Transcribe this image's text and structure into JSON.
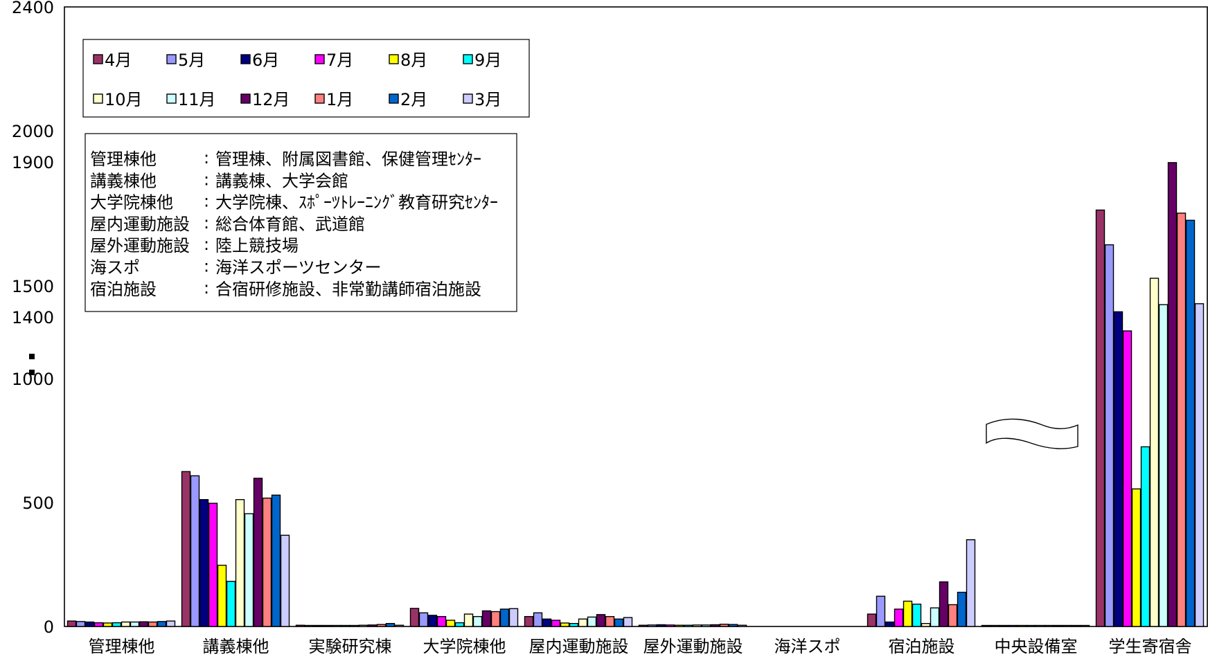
{
  "chart_data": {
    "type": "bar",
    "title": "",
    "xlabel": "",
    "ylabel": "",
    "categories": [
      "管理棟他",
      "講義棟他",
      "実験研究棟",
      "大学院棟他",
      "屋内運動施設",
      "屋外運動施設",
      "海洋スポ",
      "宿泊施設",
      "中央設備室",
      "学生寄宿舎"
    ],
    "y_ticks": [
      "0",
      "500",
      "1000",
      "1400",
      "1500",
      "1900",
      "2000",
      "2400"
    ],
    "y_axis_break": {
      "lower_range": [
        0,
        1000
      ],
      "upper_range": [
        1400,
        2400
      ]
    },
    "ylim": [
      0,
      2400
    ],
    "legend_position": "top-left",
    "grid": false,
    "series": [
      {
        "name": "4月",
        "color": "#993366",
        "values": [
          22,
          625,
          5,
          73,
          40,
          5,
          0,
          50,
          3,
          1745
        ]
      },
      {
        "name": "5月",
        "color": "#9999FF",
        "values": [
          20,
          608,
          4,
          55,
          55,
          6,
          0,
          122,
          3,
          1633
        ]
      },
      {
        "name": "6月",
        "color": "#000080",
        "values": [
          18,
          512,
          4,
          45,
          30,
          7,
          0,
          18,
          2,
          1417
        ]
      },
      {
        "name": "7月",
        "color": "#FF00FF",
        "values": [
          15,
          497,
          4,
          40,
          25,
          6,
          0,
          70,
          2,
          1310
        ]
      },
      {
        "name": "8月",
        "color": "#FFFF00",
        "values": [
          14,
          247,
          3,
          25,
          14,
          5,
          0,
          102,
          2,
          555
        ]
      },
      {
        "name": "9月",
        "color": "#00FFFF",
        "values": [
          15,
          182,
          3,
          15,
          12,
          5,
          0,
          90,
          2,
          725
        ]
      },
      {
        "name": "10月",
        "color": "#FFFFCC",
        "values": [
          18,
          512,
          4,
          50,
          30,
          6,
          0,
          12,
          2,
          1525
        ]
      },
      {
        "name": "11月",
        "color": "#CCFFFF",
        "values": [
          18,
          455,
          5,
          40,
          38,
          6,
          0,
          75,
          2,
          1440
        ]
      },
      {
        "name": "12月",
        "color": "#660066",
        "values": [
          19,
          598,
          6,
          63,
          48,
          7,
          0,
          180,
          2,
          1898
        ]
      },
      {
        "name": "1月",
        "color": "#FF8080",
        "values": [
          18,
          518,
          8,
          60,
          40,
          9,
          0,
          88,
          2,
          1735
        ]
      },
      {
        "name": "2月",
        "color": "#0066CC",
        "values": [
          20,
          530,
          12,
          70,
          30,
          8,
          0,
          138,
          2,
          1712
        ]
      },
      {
        "name": "3月",
        "color": "#CCCCFF",
        "values": [
          22,
          368,
          5,
          72,
          36,
          5,
          0,
          350,
          2,
          1443
        ]
      }
    ],
    "annotation_lines": [
      {
        "name": "管理棟他",
        "sep": ":",
        "desc": "管理棟、附属図書館、保健管理ｾﾝﾀｰ"
      },
      {
        "name": "講義棟他",
        "sep": ":",
        "desc": "講義棟、大学会館"
      },
      {
        "name": "大学院棟他",
        "sep": ":",
        "desc": "大学院棟、ｽﾎﾟｰﾂﾄﾚｰﾆﾝｸﾞ教育研究ｾﾝﾀｰ"
      },
      {
        "name": "屋内運動施設",
        "sep": ":",
        "desc": "総合体育館、武道館"
      },
      {
        "name": "屋外運動施設",
        "sep": ":",
        "desc": "陸上競技場"
      },
      {
        "name": "海スポ",
        "sep": ":",
        "desc": "海洋スポーツセンター"
      },
      {
        "name": "宿泊施設",
        "sep": ":",
        "desc": "合宿研修施設、非常勤講師宿泊施設"
      }
    ]
  }
}
